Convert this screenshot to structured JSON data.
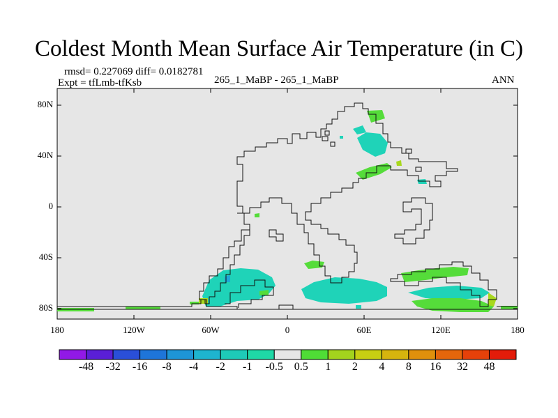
{
  "figure": {
    "title": "Coldest Month Mean Surface Air Temperature (in C)",
    "stats": "rmsd= 0.227069 diff= 0.0182781",
    "expt": "Expt = tfLmb-tfKsb",
    "center_label": "265_1_MaBP - 265_1_MaBP",
    "period": "ANN"
  },
  "axes": {
    "lat_labels": [
      "80N",
      "40N",
      "0",
      "40S",
      "80S"
    ],
    "lon_labels": [
      "180",
      "120W",
      "60W",
      "0",
      "60E",
      "120E",
      "180"
    ]
  },
  "colors": {
    "background": "#e6e6e6",
    "land": "#e6e6e6",
    "cyan": "#1fd3b8",
    "green": "#55dc3a",
    "yellowgreen": "#a8d81e"
  },
  "colorbar": {
    "labels": [
      "-48",
      "-32",
      "-16",
      "-8",
      "-4",
      "-2",
      "-1",
      "-0.5",
      "0.5",
      "1",
      "2",
      "4",
      "8",
      "16",
      "32",
      "48"
    ],
    "colors": [
      "#9119e6",
      "#5a1fd6",
      "#2a4fd8",
      "#1e75d9",
      "#1e95d6",
      "#1eb4cf",
      "#1ecab8",
      "#1fd8a6",
      "#e6e6e6",
      "#4fdc36",
      "#a3d31d",
      "#c8cf12",
      "#d6b40e",
      "#e0900c",
      "#e5660b",
      "#e6410a",
      "#e31c0a"
    ]
  }
}
